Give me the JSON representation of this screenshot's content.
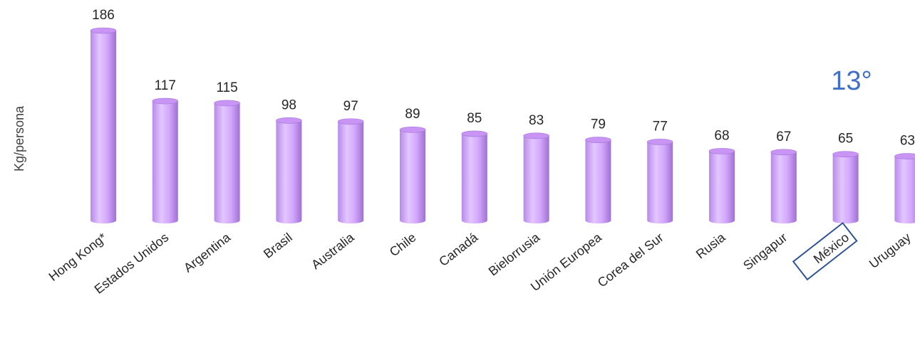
{
  "chart_data": {
    "type": "bar",
    "title": "",
    "xlabel": "",
    "ylabel": "Kg/persona",
    "categories": [
      "Hong Kong*",
      "Estados Unidos",
      "Argentina",
      "Brasil",
      "Australia",
      "Chile",
      "Canadá",
      "Bielorrusia",
      "Unión Europea",
      "Corea del Sur",
      "Rusia",
      "Singapur",
      "México",
      "Uruguay"
    ],
    "values": [
      186,
      117,
      115,
      98,
      97,
      89,
      85,
      83,
      79,
      77,
      68,
      67,
      65,
      63
    ],
    "ylim": [
      0,
      186
    ],
    "grid": false,
    "legend": "none",
    "highlight": "México",
    "annotation": "13°",
    "colors": {
      "bar_body": "#d9aeff",
      "bar_top": "#c995f5",
      "bar_shade": "#a373d8",
      "highlight_box": "#2f5597",
      "annotation": "#3f6fc6"
    }
  }
}
